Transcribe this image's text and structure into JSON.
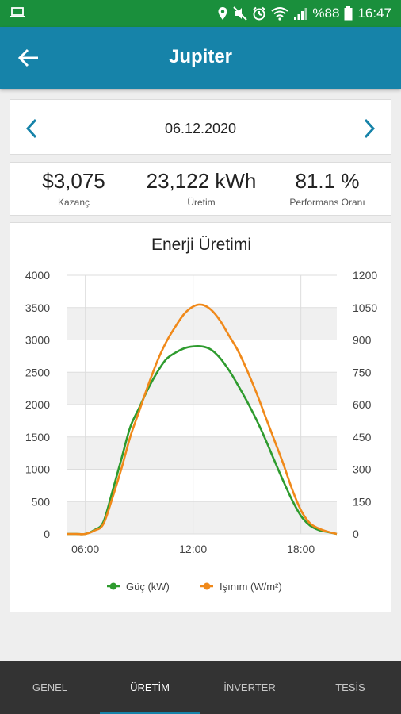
{
  "status_bar": {
    "battery_text": "%88",
    "time": "16:47"
  },
  "app_bar": {
    "title": "Jupiter"
  },
  "date_nav": {
    "date": "06.12.2020"
  },
  "stats": [
    {
      "value": "$3,075",
      "label": "Kazanç"
    },
    {
      "value": "23,122 kWh",
      "label": "Üretim"
    },
    {
      "value": "81.1 %",
      "label": "Performans Oranı"
    }
  ],
  "colors": {
    "status_bar": "#1a8f3c",
    "app_bar": "#1683a9",
    "series_power": "#2e9b2e",
    "series_irradiance": "#f0891a",
    "tab_bar": "#333333"
  },
  "chart_data": {
    "type": "line",
    "title": "Enerji Üretimi",
    "x_tick_labels": [
      "06:00",
      "12:00",
      "18:00"
    ],
    "x_ticks_hours": [
      6,
      12,
      18
    ],
    "xlim_hours": [
      5,
      20
    ],
    "y_left": {
      "lim": [
        0,
        4000
      ],
      "ticks": [
        "4000",
        "3500",
        "3000",
        "2500",
        "2000",
        "1500",
        "1000",
        "500",
        "0"
      ]
    },
    "y_right": {
      "lim": [
        0,
        1200
      ],
      "ticks": [
        "1200",
        "1050",
        "900",
        "750",
        "600",
        "450",
        "300",
        "150",
        "0"
      ]
    },
    "grid": true,
    "legend_position": "bottom",
    "series": [
      {
        "name": "Güç (kW)",
        "axis": "left",
        "color": "#2e9b2e",
        "x_hours": [
          5.0,
          5.5,
          6.0,
          6.5,
          7.0,
          7.5,
          8.0,
          8.5,
          9.0,
          9.5,
          10.0,
          10.5,
          11.0,
          11.5,
          12.0,
          12.5,
          13.0,
          13.5,
          14.0,
          14.5,
          15.0,
          15.5,
          16.0,
          16.5,
          17.0,
          17.5,
          18.0,
          18.5,
          19.0,
          19.5,
          20.0
        ],
        "values": [
          0,
          0,
          0,
          60,
          180,
          650,
          1150,
          1650,
          1950,
          2250,
          2500,
          2700,
          2800,
          2870,
          2900,
          2900,
          2850,
          2720,
          2530,
          2300,
          2050,
          1780,
          1480,
          1150,
          830,
          530,
          280,
          130,
          60,
          30,
          0
        ]
      },
      {
        "name": "Işınım (W/m²)",
        "axis": "right",
        "color": "#f0891a",
        "x_hours": [
          5.0,
          5.5,
          6.0,
          6.5,
          7.0,
          7.5,
          8.0,
          8.5,
          9.0,
          9.5,
          10.0,
          10.5,
          11.0,
          11.5,
          12.0,
          12.5,
          13.0,
          13.5,
          14.0,
          14.5,
          15.0,
          15.5,
          16.0,
          16.5,
          17.0,
          17.5,
          18.0,
          18.5,
          19.0,
          19.5,
          20.0
        ],
        "values": [
          0,
          0,
          0,
          15,
          45,
          165,
          300,
          450,
          570,
          690,
          800,
          890,
          960,
          1020,
          1055,
          1063,
          1040,
          990,
          920,
          850,
          760,
          660,
          550,
          440,
          330,
          210,
          110,
          50,
          25,
          10,
          0
        ]
      }
    ]
  },
  "tabs": [
    {
      "label": "GENEL",
      "active": false
    },
    {
      "label": "ÜRETİM",
      "active": true
    },
    {
      "label": "İNVERTER",
      "active": false
    },
    {
      "label": "TESİS",
      "active": false
    }
  ]
}
